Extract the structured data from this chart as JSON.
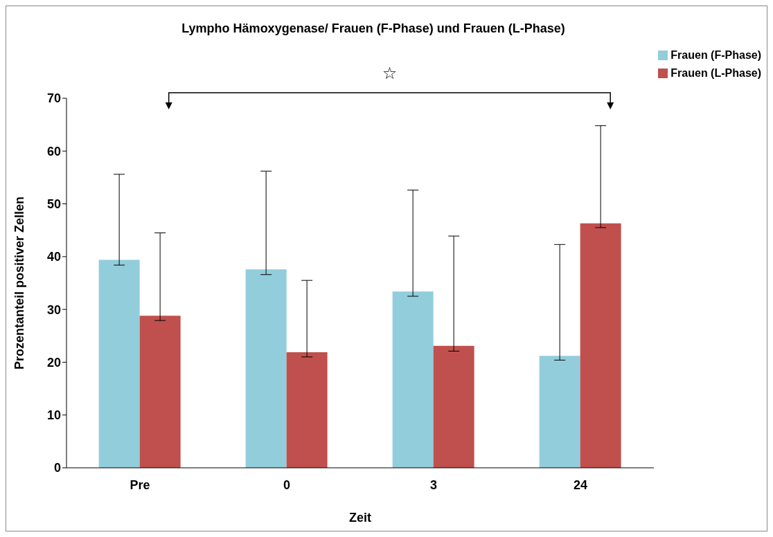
{
  "chart_data": {
    "type": "bar",
    "title": "Lympho Hämoxygenase/ Frauen (F-Phase) und Frauen (L-Phase)",
    "xlabel": "Zeit",
    "ylabel": "Prozentanteil positiver Zellen",
    "categories": [
      "Pre",
      "0",
      "3",
      "24"
    ],
    "series": [
      {
        "name": "Frauen (F-Phase)",
        "color": "#92cddc",
        "values": [
          39.4,
          37.6,
          33.4,
          21.2
        ],
        "errors": [
          [
            38.4,
            55.6
          ],
          [
            36.6,
            56.2
          ],
          [
            32.5,
            52.6
          ],
          [
            20.4,
            42.3
          ]
        ]
      },
      {
        "name": "Frauen (L-Phase)",
        "color": "#c0504d",
        "values": [
          28.8,
          21.9,
          23.1,
          46.3
        ],
        "errors": [
          [
            27.9,
            44.5
          ],
          [
            21.0,
            35.5
          ],
          [
            22.1,
            43.9
          ],
          [
            45.5,
            64.8
          ]
        ]
      }
    ],
    "ylim": [
      0,
      70
    ],
    "yticks": [
      0,
      10,
      20,
      30,
      40,
      50,
      60,
      70
    ],
    "grid": false,
    "legend": "top right",
    "annotations": [
      "☆"
    ]
  }
}
